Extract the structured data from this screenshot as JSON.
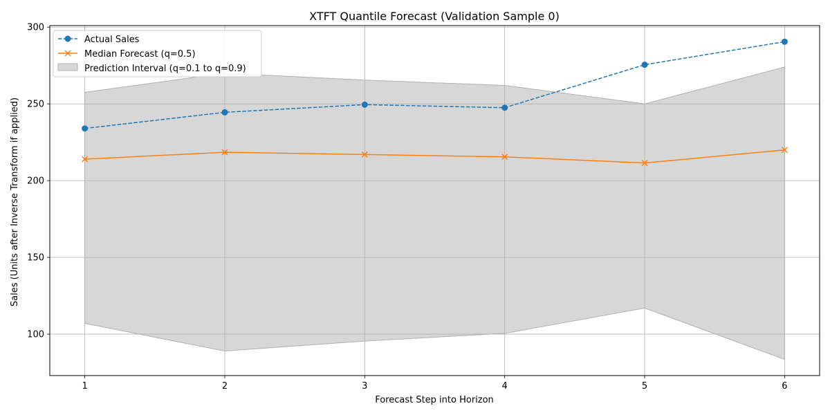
{
  "chart_data": {
    "type": "line",
    "title": "XTFT Quantile Forecast (Validation Sample 0)",
    "xlabel": "Forecast Step into Horizon",
    "ylabel": "Sales (Units after Inverse Transform if applied)",
    "x": [
      1,
      2,
      3,
      4,
      5,
      6
    ],
    "xticks": [
      "1",
      "2",
      "3",
      "4",
      "5",
      "6"
    ],
    "yticks": [
      "100",
      "150",
      "200",
      "250",
      "300"
    ],
    "ytick_values": [
      100,
      150,
      200,
      250,
      300
    ],
    "xlim": [
      0.75,
      6.25
    ],
    "ylim": [
      73,
      301
    ],
    "grid": true,
    "legend_position": "top-left",
    "series": [
      {
        "name": "Actual Sales",
        "values": [
          234,
          244.5,
          249.5,
          247.5,
          275.5,
          290.5
        ],
        "color": "#1f77b4",
        "style": "dashed",
        "marker": "circle"
      },
      {
        "name": "Median Forecast (q=0.5)",
        "values": [
          214,
          218.5,
          217,
          215.5,
          211.5,
          220
        ],
        "color": "#ff7f0e",
        "style": "solid",
        "marker": "x"
      }
    ],
    "interval": {
      "name": "Prediction Interval (q=0.1 to q=0.9)",
      "lower": [
        107,
        89,
        95.5,
        100.5,
        117,
        83.5
      ],
      "upper": [
        257.5,
        270,
        265.5,
        262,
        250,
        274
      ],
      "color": "#b0b0b0"
    }
  }
}
